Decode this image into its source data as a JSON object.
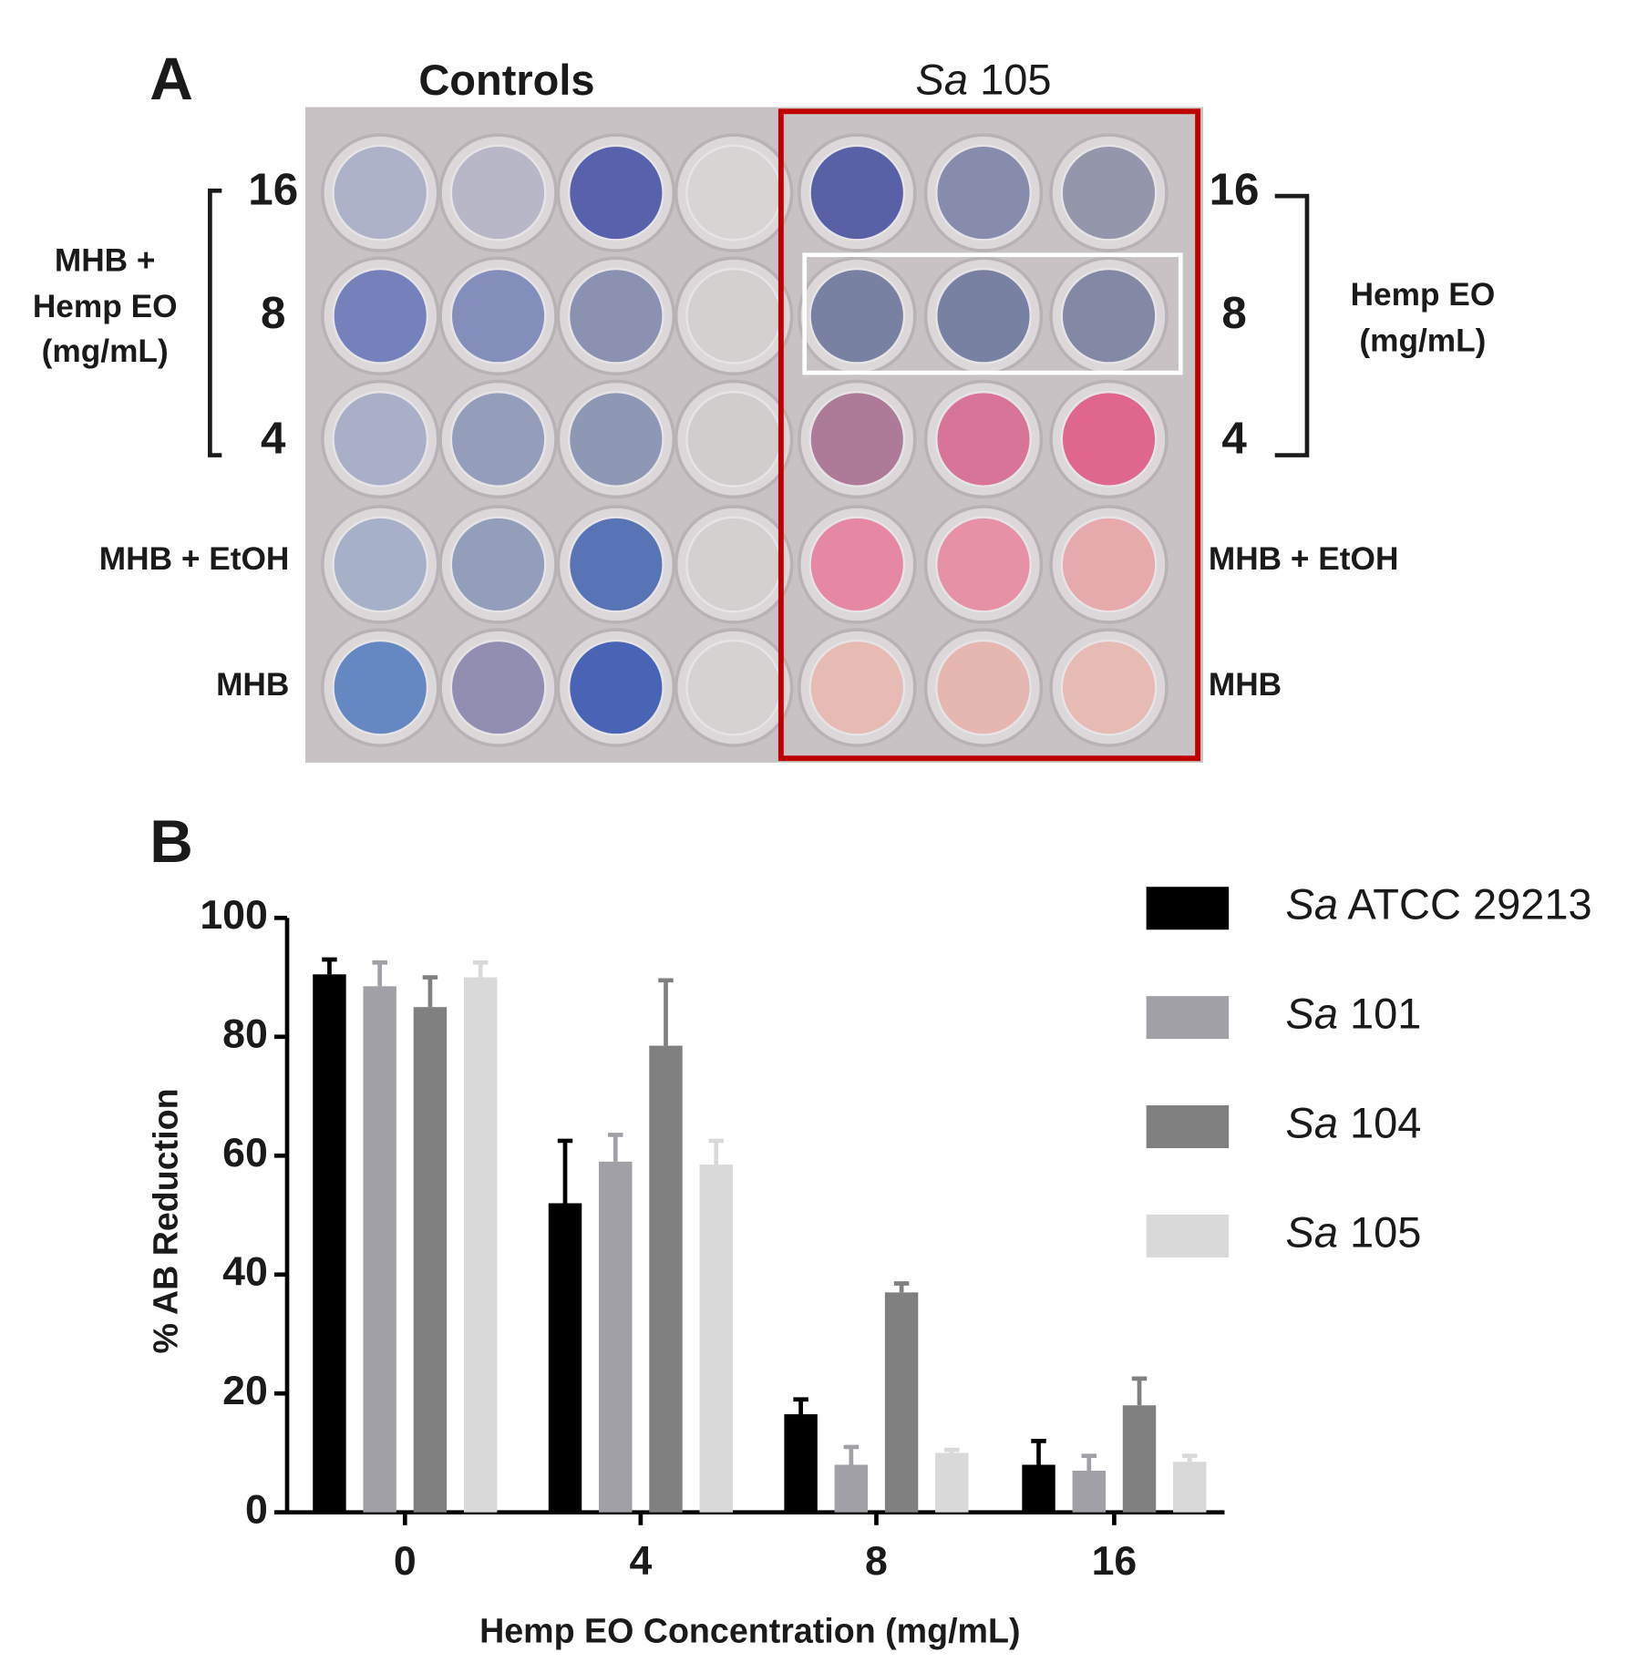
{
  "panel_a": {
    "label": "A",
    "headers": [
      "Controls",
      "Sa 105"
    ],
    "left_labels": {
      "group": [
        "MHB +",
        "Hemp EO",
        "(mg/mL)"
      ],
      "concentrations": [
        "16",
        "8",
        "4"
      ],
      "rows": [
        "MHB + EtOH",
        "MHB"
      ]
    },
    "right_labels": {
      "group": [
        "Hemp EO",
        "(mg/mL)"
      ],
      "concentrations": [
        "16",
        "8",
        "4"
      ],
      "rows": [
        "MHB + EtOH",
        "MHB"
      ]
    }
  },
  "panel_b": {
    "label": "B"
  },
  "chart_data": {
    "type": "bar",
    "x_label": "Hemp EO Concentration  (mg/mL)",
    "y_label": "% AB Reduction",
    "categories": [
      "0",
      "4",
      "8",
      "16"
    ],
    "series": [
      {
        "name": "Sa ATCC 29213",
        "color": "#000000",
        "values": [
          90.5,
          52,
          16.5,
          8
        ],
        "errors": [
          2.5,
          10.5,
          2.5,
          4
        ]
      },
      {
        "name": "Sa 101",
        "color": "#a0a0a6",
        "values": [
          88.5,
          59,
          8,
          7
        ],
        "errors": [
          4,
          4.5,
          3,
          2.5
        ]
      },
      {
        "name": "Sa 104",
        "color": "#808080",
        "values": [
          85,
          78.5,
          37,
          18
        ],
        "errors": [
          5,
          11,
          1.5,
          4.5
        ]
      },
      {
        "name": "Sa 105",
        "color": "#d9d9d9",
        "values": [
          90,
          58.5,
          10,
          8.5
        ],
        "errors": [
          2.5,
          4,
          0.5,
          1
        ]
      }
    ],
    "ylim": [
      0,
      100
    ],
    "yticks": [
      0,
      20,
      40,
      60,
      80,
      100
    ],
    "grid": false,
    "legend": "right"
  }
}
